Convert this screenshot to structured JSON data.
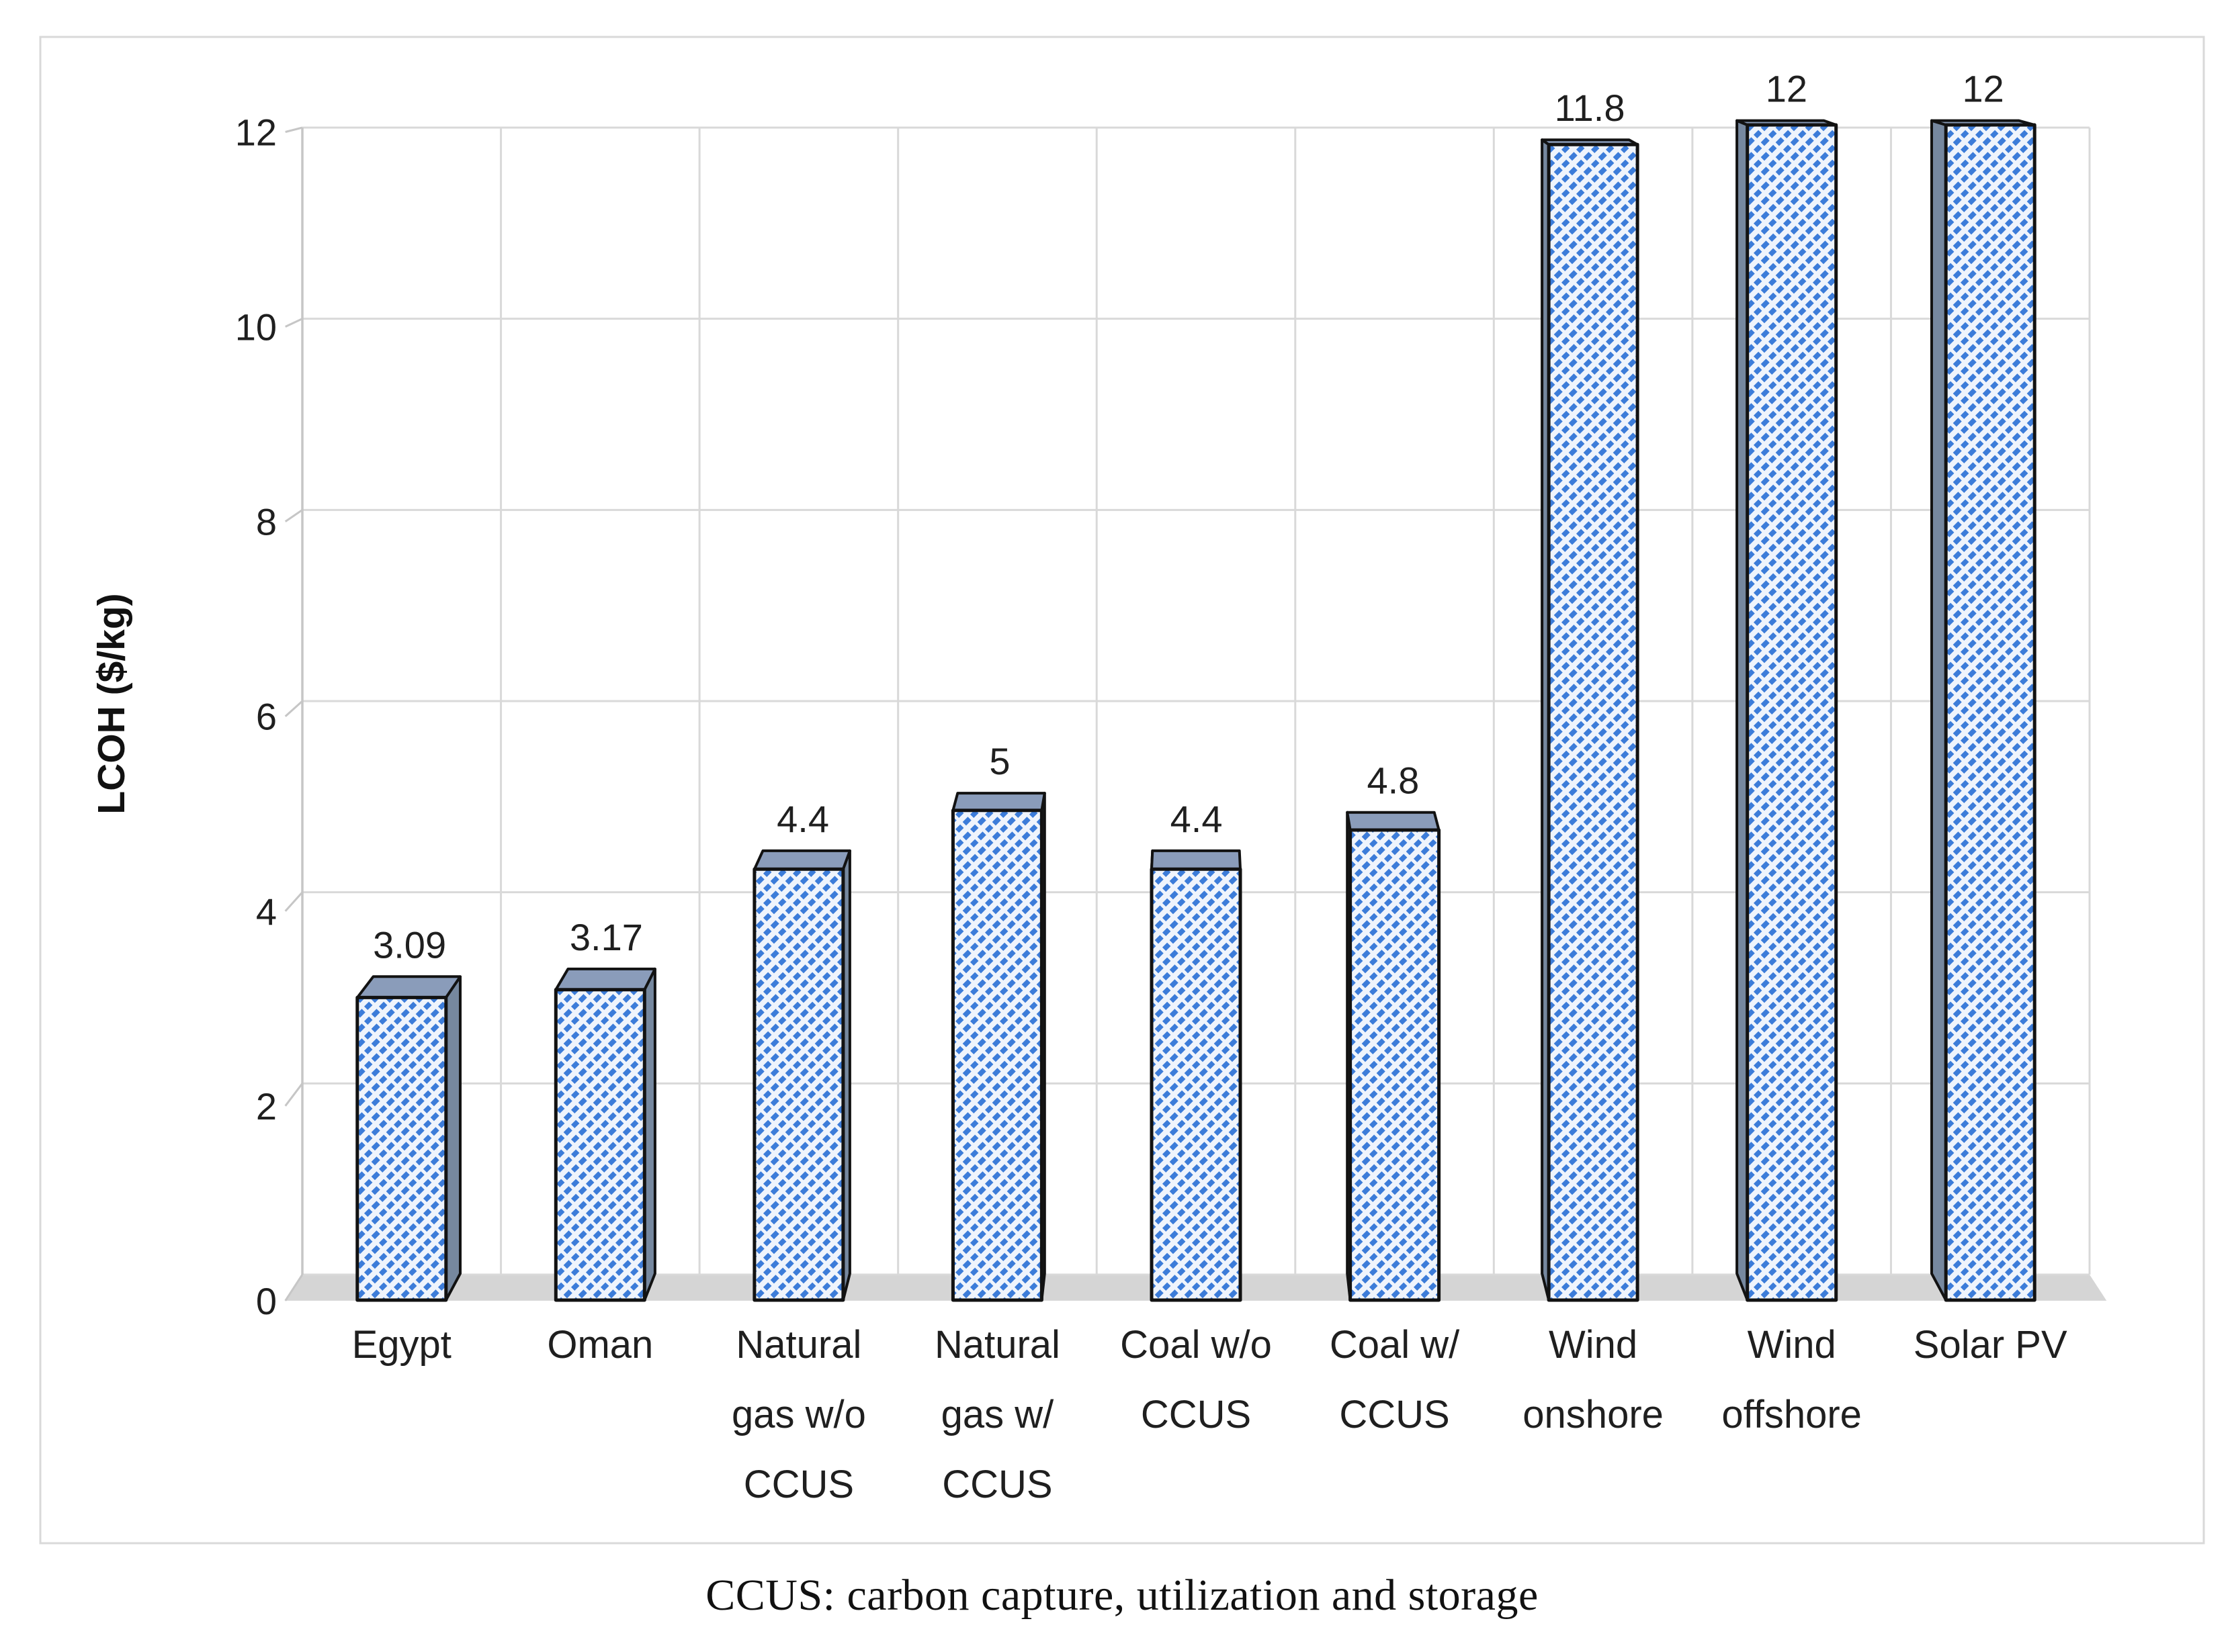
{
  "figure": {
    "caption": "CCUS: carbon capture, utilization and storage"
  },
  "chart_data": {
    "type": "bar",
    "style": "3d-column-hatched",
    "title": "",
    "categories": [
      "Egypt",
      "Oman",
      "Natural gas w/o CCUS",
      "Natural gas w/ CCUS",
      "Coal w/o CCUS",
      "Coal w/ CCUS",
      "Wind onshore",
      "Wind offshore",
      "Solar PV"
    ],
    "category_lines": [
      [
        "Egypt"
      ],
      [
        "Oman"
      ],
      [
        "Natural",
        "gas w/o",
        "CCUS"
      ],
      [
        "Natural",
        "gas w/",
        "CCUS"
      ],
      [
        "Coal w/o",
        "CCUS"
      ],
      [
        "Coal w/",
        "CCUS"
      ],
      [
        "Wind",
        "onshore"
      ],
      [
        "Wind",
        "offshore"
      ],
      [
        "Solar PV"
      ]
    ],
    "values": [
      3.09,
      3.17,
      4.4,
      5,
      4.4,
      4.8,
      11.8,
      12,
      12
    ],
    "data_labels": [
      "3.09",
      "3.17",
      "4.4",
      "5",
      "4.4",
      "4.8",
      "11.8",
      "12",
      "12"
    ],
    "xlabel": "",
    "ylabel": "LCOH ($/kg)",
    "ylim": [
      0,
      12
    ],
    "yticks": [
      0,
      2,
      4,
      6,
      8,
      10,
      12
    ],
    "grid": true,
    "legend": false,
    "colors": {
      "hatch_stripe": "#3C7CD9",
      "hatch_background": "#EFF4FC",
      "bar_top_face": "#8A9CBA",
      "bar_side_face": "#76889F",
      "bar_outline": "#121212",
      "gridline": "#D9D9D9",
      "axis_line": "#C6C6C6",
      "floor": "#D5D5D5",
      "frame_border": "#D9D9D9",
      "text": "#1F1F1F"
    }
  }
}
